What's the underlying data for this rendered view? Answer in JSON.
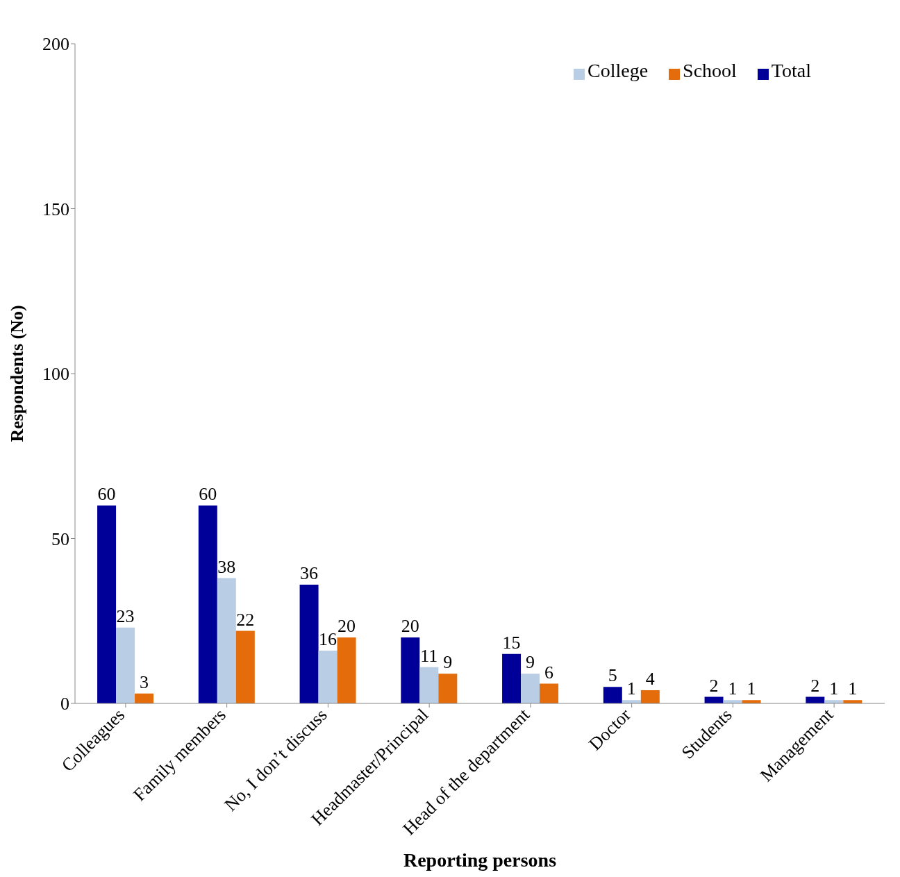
{
  "chart_data": {
    "type": "bar",
    "xlabel": "Reporting persons",
    "ylabel": "Respondents (No)",
    "categories": [
      "Colleagues",
      "Family members",
      "No, I don’t discuss",
      "Headmaster/Principal",
      "Head of the department",
      "Doctor",
      "Students",
      "Management"
    ],
    "series": [
      {
        "name": "Total",
        "color": "#000099",
        "values": [
          60,
          60,
          36,
          20,
          15,
          5,
          2,
          2
        ]
      },
      {
        "name": "College",
        "color": "#b9cde5",
        "values": [
          23,
          38,
          16,
          11,
          9,
          1,
          1,
          1
        ]
      },
      {
        "name": "School",
        "color": "#e46c0a",
        "values": [
          3,
          22,
          20,
          9,
          6,
          4,
          1,
          1
        ]
      }
    ],
    "ylim": [
      0,
      200
    ],
    "yticks": [
      0,
      50,
      100,
      150,
      200
    ],
    "grid": false,
    "legend": "top right",
    "data_labels": true
  }
}
